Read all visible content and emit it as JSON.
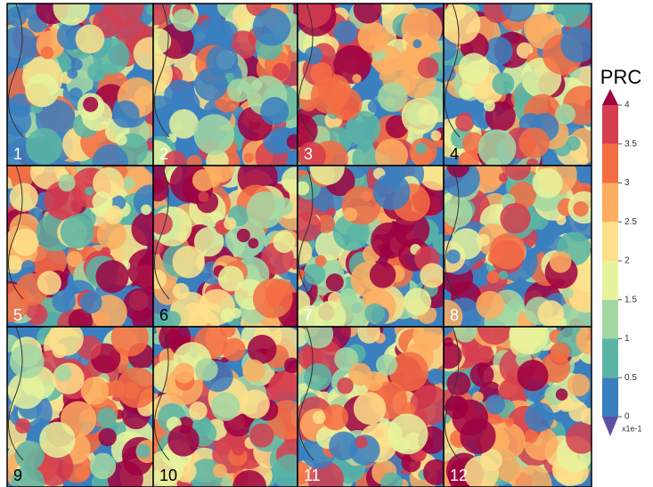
{
  "panels": [
    {
      "label": "1",
      "label_color": "#ffffff"
    },
    {
      "label": "2",
      "label_color": "#ffffff"
    },
    {
      "label": "3",
      "label_color": "#ffffff"
    },
    {
      "label": "4",
      "label_color": "#000000"
    },
    {
      "label": "5",
      "label_color": "#ffffff"
    },
    {
      "label": "6",
      "label_color": "#000000"
    },
    {
      "label": "7",
      "label_color": "#ffffff"
    },
    {
      "label": "8",
      "label_color": "#ffffff"
    },
    {
      "label": "9",
      "label_color": "#000000"
    },
    {
      "label": "10",
      "label_color": "#000000"
    },
    {
      "label": "11",
      "label_color": "#ffffff"
    },
    {
      "label": "12",
      "label_color": "#ffffff"
    }
  ],
  "colorbar": {
    "title": "PRC",
    "range": [
      0,
      4
    ],
    "ticks": [
      0,
      0.5,
      1,
      1.5,
      2,
      2.5,
      3,
      3.5,
      4
    ],
    "multiplier": "x1e-1",
    "colors": [
      "#3b7fbf",
      "#5bb5a5",
      "#a3d8a3",
      "#e6f39c",
      "#fee08b",
      "#fdae61",
      "#f46d43",
      "#d53e4f"
    ],
    "over_color": "#9e0142",
    "under_color": "#5e4fa2"
  }
}
